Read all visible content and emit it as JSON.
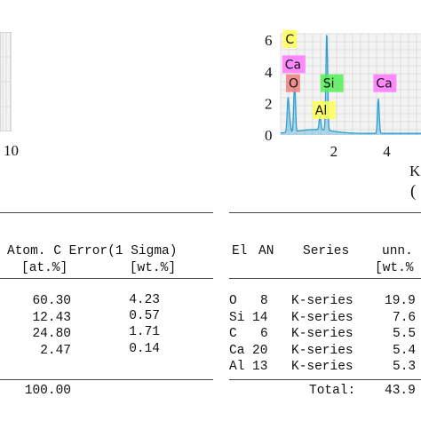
{
  "left_chart": {
    "x_tick_label": "10"
  },
  "chart_data": {
    "type": "line",
    "title": "",
    "xlabel": "K",
    "ylabel": "",
    "ylim": [
      0,
      6.4
    ],
    "xlim": [
      0,
      5.3
    ],
    "y_ticks": [
      "6",
      "4",
      "2",
      "0"
    ],
    "x_ticks": [
      "2",
      "4"
    ],
    "grid": true,
    "series_color": "#2e9fd0",
    "peaks": [
      {
        "element": "C",
        "x": 0.277,
        "height": 2.1,
        "label_color": "#ffff55"
      },
      {
        "element": "O",
        "x": 0.525,
        "height": 3.0,
        "label_color": "#f08080"
      },
      {
        "element": "Al",
        "x": 1.486,
        "height": 0.9,
        "label_color": "#ffff55"
      },
      {
        "element": "Si",
        "x": 1.74,
        "height": 6.2,
        "label_color": "#55ee55"
      },
      {
        "element": "Ca",
        "x": 3.69,
        "height": 2.2,
        "label_color": "#ff77ff"
      },
      {
        "element": "Ca",
        "x": 0.341,
        "height": 0.8,
        "label_color": "#ff77ff"
      }
    ],
    "peak_labels": [
      {
        "text": "C",
        "bg": "#ffff55"
      },
      {
        "text": "Ca",
        "bg": "#ff77ff"
      },
      {
        "text": "O",
        "bg": "#f08080"
      },
      {
        "text": "Si",
        "bg": "#55ee55"
      },
      {
        "text": "Ca",
        "bg": "#ff77ff"
      },
      {
        "text": "Al",
        "bg": "#ffff55"
      }
    ],
    "partial_bottom_label": "("
  },
  "left_table": {
    "header1": "Atom. C Error(1 Sigma)",
    "header2": "[at.%]        [wt.%]",
    "rows": [
      {
        "atom": "60.30",
        "err": "4.23"
      },
      {
        "atom": "12.43",
        "err": "0.57"
      },
      {
        "atom": "24.80",
        "err": "1.71"
      },
      {
        "atom": "2.47",
        "err": "0.14"
      }
    ],
    "total": "100.00"
  },
  "right_table": {
    "headers": {
      "el": "El",
      "an": "AN",
      "series": "Series",
      "unn": "unn.",
      "unit": "[wt.%"
    },
    "rows": [
      {
        "el": "O",
        "an": "8",
        "series": "K-series",
        "unn": "19.9"
      },
      {
        "el": "Si",
        "an": "14",
        "series": "K-series",
        "unn": "7.6"
      },
      {
        "el": "C",
        "an": "6",
        "series": "K-series",
        "unn": "5.5"
      },
      {
        "el": "Ca",
        "an": "20",
        "series": "K-series",
        "unn": "5.4"
      },
      {
        "el": "Al",
        "an": "13",
        "series": "K-series",
        "unn": "5.3"
      }
    ],
    "total_label": "Total:",
    "total_value": "43.9"
  }
}
